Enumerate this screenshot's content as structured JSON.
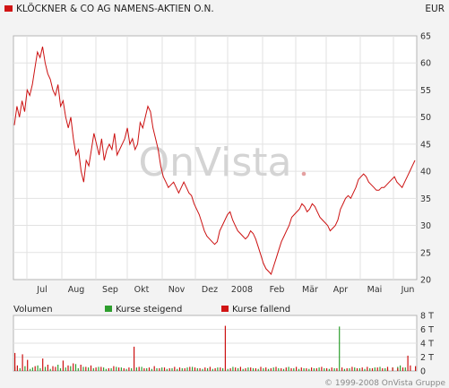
{
  "chart_data": [
    {
      "type": "line",
      "title": "KLÖCKNER & CO AG NAMENS-AKTIEN O.N.",
      "currency": "EUR",
      "watermark": "OnVista",
      "line_color": "#cc1111",
      "ylim": [
        20,
        65
      ],
      "yticks": [
        20,
        25,
        30,
        35,
        40,
        45,
        50,
        55,
        60,
        65
      ],
      "x_labels": [
        "Jul",
        "Aug",
        "Sep",
        "Okt",
        "Nov",
        "Dez",
        "2008",
        "Feb",
        "Mär",
        "Apr",
        "Mai",
        "Jun"
      ],
      "grid": true,
      "series": [
        {
          "values": [
            48.5,
            52,
            50,
            53,
            51,
            55,
            54,
            56,
            59,
            62,
            61,
            63,
            60,
            58,
            57,
            55,
            54,
            56,
            52,
            53,
            50,
            48,
            50,
            46,
            43,
            44,
            40,
            38,
            42,
            41,
            44,
            47,
            45,
            43,
            46,
            42,
            44,
            45,
            44,
            47,
            43,
            44,
            45,
            46,
            48,
            45,
            46,
            44,
            45,
            49,
            48,
            50,
            52,
            51,
            48,
            46,
            44,
            41,
            39,
            38,
            37,
            37.5,
            38,
            37,
            36,
            37,
            38,
            37,
            36,
            35.5,
            34,
            33,
            32,
            30.5,
            29,
            28,
            27.5,
            27,
            26.5,
            27,
            29,
            30,
            31,
            32,
            32.5,
            31,
            30,
            29,
            28.5,
            28,
            27.5,
            28,
            29,
            28.5,
            27.5,
            26,
            24.5,
            23,
            22,
            21.5,
            21,
            22.5,
            24,
            25.5,
            27,
            28,
            29,
            30,
            31.5,
            32,
            32.5,
            33,
            34,
            33.5,
            32.5,
            33,
            34,
            33.5,
            32.5,
            31.5,
            31,
            30.5,
            30,
            29,
            29.5,
            30,
            31,
            33,
            34,
            35,
            35.5,
            35,
            36,
            37,
            38.5,
            39,
            39.5,
            39,
            38,
            37.5,
            37,
            36.5,
            36.5,
            37,
            37,
            37.5,
            38,
            38.5,
            39,
            38,
            37.5,
            37,
            38,
            39,
            40,
            41,
            42
          ]
        }
      ]
    },
    {
      "type": "bar",
      "title": "Volumen",
      "legend": [
        {
          "label": "Kurse steigend",
          "color": "#2e9e2e"
        },
        {
          "label": "Kurse fallend",
          "color": "#cc1111"
        }
      ],
      "legend_position": "top",
      "ylim": [
        0,
        8
      ],
      "ytick_labels": [
        "0",
        "2 T",
        "4 T",
        "6 T",
        "8 T"
      ],
      "yticks": [
        0,
        2,
        4,
        6,
        8
      ],
      "unit": "T",
      "series": [
        {
          "name": "Kurse steigend",
          "values": [
            0.6,
            0,
            0.4,
            0,
            0.7,
            0,
            0.3,
            0.5,
            0,
            0.8,
            0.4,
            0,
            0.6,
            0,
            0.3,
            0,
            0,
            0.9,
            0.4,
            0,
            0.5,
            0,
            0.7,
            0,
            1.0,
            0.4,
            0,
            0.6,
            0,
            0.5,
            0,
            0.4,
            0,
            0.6,
            0,
            0.5,
            0.3,
            0,
            0.4,
            0,
            0.6,
            0,
            0.5,
            0,
            0.3,
            0,
            0.4,
            0,
            0.5,
            0,
            0.6,
            0,
            0.4,
            0,
            0.3,
            0,
            0.4,
            0,
            0.5,
            0,
            0.3,
            0,
            0.4,
            0,
            0.3,
            0,
            0.4,
            0,
            0.5,
            0,
            0.6,
            0,
            0.4,
            0,
            0.3,
            0,
            0.4,
            0,
            0.3,
            0,
            0.5,
            0,
            0.4,
            0,
            0.3,
            0,
            0.6,
            0,
            0.4,
            0,
            0.3,
            0,
            0.5,
            0,
            0.4,
            0,
            0.3,
            0,
            0.4,
            0,
            0.3,
            0,
            0.5,
            0,
            0.4,
            0,
            0.3,
            0,
            0.6,
            0,
            0.4,
            0,
            0.3,
            0,
            0.4,
            0,
            0.3,
            0,
            0.4,
            0,
            0.5,
            0,
            0.4,
            0,
            0.3,
            0,
            0.4,
            0,
            6.4,
            0,
            0.3,
            0,
            0.4,
            0,
            0.5,
            0,
            0.4,
            0,
            0.3,
            0,
            0.4,
            0,
            0.5,
            0,
            0.6,
            0,
            0.4,
            0.3,
            0,
            0.5,
            0,
            0.6,
            0.8,
            0,
            0.5
          ]
        },
        {
          "name": "Kurse fallend",
          "values": [
            2.6,
            0.8,
            0,
            2.4,
            0,
            1.6,
            0,
            0,
            0.7,
            0,
            0,
            1.8,
            0,
            0.9,
            0,
            0.7,
            0.6,
            0,
            0,
            1.5,
            0,
            0.8,
            0,
            1.1,
            0,
            0,
            0.9,
            0,
            0.6,
            0,
            0.8,
            0,
            0.5,
            0,
            0.6,
            0,
            0,
            0.4,
            0,
            0.7,
            0,
            0.5,
            0,
            0.4,
            0,
            0.5,
            0,
            3.5,
            0,
            0.6,
            0,
            0.4,
            0,
            0.5,
            0,
            0.7,
            0,
            0.4,
            0,
            0.5,
            0,
            0.4,
            0,
            0.6,
            0,
            0.5,
            0,
            0.4,
            0,
            0.6,
            0,
            0.5,
            0,
            0.4,
            0,
            0.5,
            0,
            0.6,
            0,
            0.4,
            0,
            0.5,
            0,
            6.5,
            0,
            0.4,
            0,
            0.5,
            0,
            0.6,
            0,
            0.4,
            0,
            0.5,
            0,
            0.4,
            0,
            0.6,
            0,
            0.5,
            0,
            0.4,
            0,
            0.6,
            0,
            0.4,
            0,
            0.5,
            0,
            0.4,
            0,
            0.6,
            0,
            0.5,
            0,
            0.4,
            0,
            0.5,
            0,
            0.4,
            0,
            0.6,
            0,
            0.4,
            0,
            0.5,
            0,
            0.4,
            0,
            0.5,
            0,
            0.4,
            0,
            0.6,
            0,
            0.4,
            0,
            0.5,
            0,
            0.6,
            0,
            0.4,
            0,
            0.5,
            0,
            0.4,
            0,
            0.6,
            0,
            0.5,
            0,
            0.4,
            0,
            0.5,
            0,
            2.2,
            0.8,
            0,
            0.7
          ]
        }
      ]
    }
  ],
  "footer": {
    "copyright": "© 1999-2008 OnVista Gruppe"
  }
}
